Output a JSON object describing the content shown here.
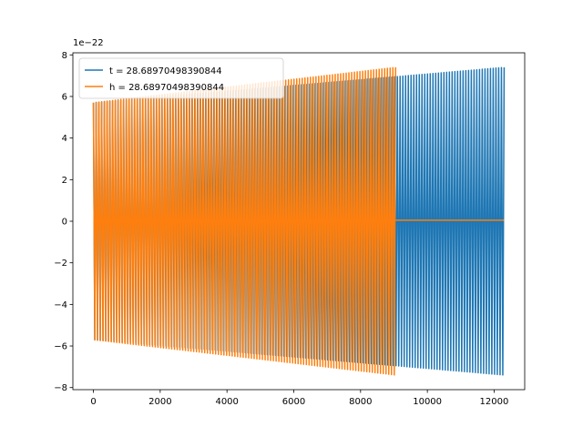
{
  "chart_data": {
    "type": "line",
    "title": "",
    "xlabel": "",
    "ylabel": "",
    "offset_label": "1e−22",
    "scale": 1e-22,
    "xlim": [
      -615,
      12915
    ],
    "ylim": [
      -8.1,
      8.1
    ],
    "xticks": [
      0,
      2000,
      4000,
      6000,
      8000,
      10000,
      12000
    ],
    "xtick_labels": [
      "0",
      "2000",
      "4000",
      "6000",
      "8000",
      "10000",
      "12000"
    ],
    "yticks": [
      -8,
      -6,
      -4,
      -2,
      0,
      2,
      4,
      6,
      8
    ],
    "ytick_labels": [
      "−8",
      "−6",
      "−4",
      "−2",
      "0",
      "2",
      "4",
      "6",
      "8"
    ],
    "grid": false,
    "legend_placement": "upper-left",
    "series": [
      {
        "name": "t = 28.68970498390844",
        "color": "#1f77b4",
        "waveform": {
          "start_x": 0,
          "end_x": 12300,
          "cycles": 150,
          "envelope_start": 5.7,
          "envelope_end": 7.4,
          "dense_segment": [
            3300,
            9050
          ],
          "flat_after": null
        }
      },
      {
        "name": "h = 28.68970498390844",
        "color": "#ff7f0e",
        "waveform": {
          "start_x": 0,
          "end_x": 9050,
          "cycles": 110,
          "envelope_start": 5.7,
          "envelope_end": 7.4,
          "flat_line": {
            "y": 0.05,
            "from": 0,
            "to": 3300
          },
          "flat_after": {
            "y": 0.05,
            "from": 9050,
            "to": 12300
          }
        }
      }
    ]
  }
}
